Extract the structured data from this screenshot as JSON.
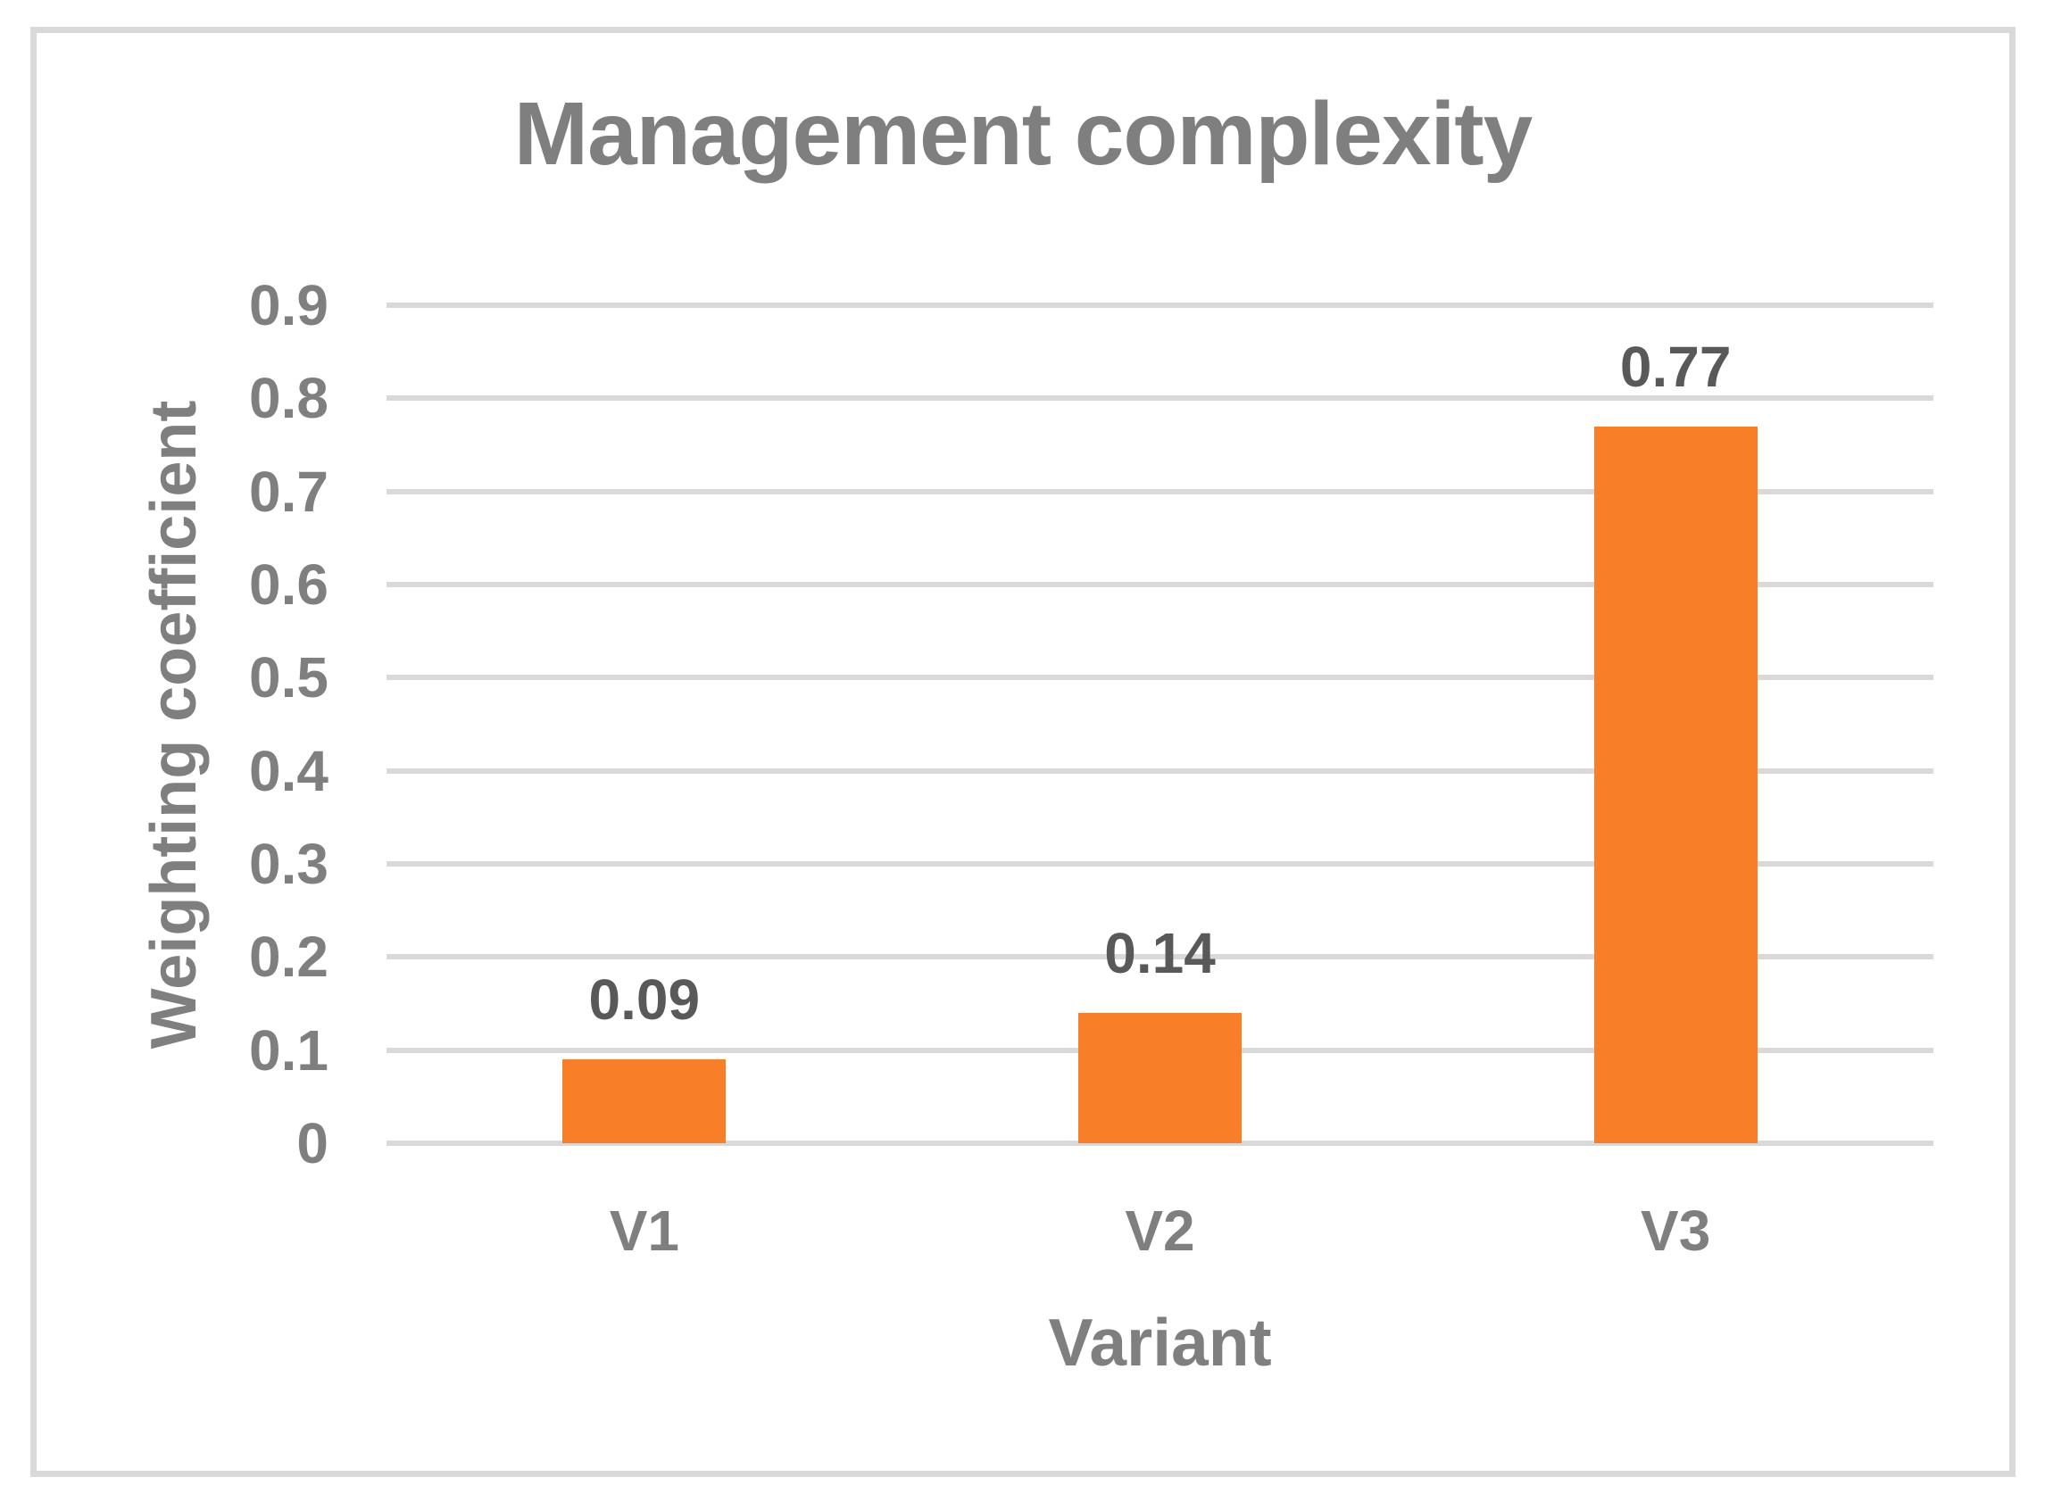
{
  "chart_data": {
    "type": "bar",
    "title": "Management complexity",
    "xlabel": "Variant",
    "ylabel": "Weighting coefficient",
    "categories": [
      "V1",
      "V2",
      "V3"
    ],
    "values": [
      0.09,
      0.14,
      0.77
    ],
    "data_labels": [
      "0.09",
      "0.14",
      "0.77"
    ],
    "ylim": [
      0,
      0.9
    ],
    "ytick_step": 0.1,
    "ytick_labels": [
      "0",
      "0.1",
      "0.2",
      "0.3",
      "0.4",
      "0.5",
      "0.6",
      "0.7",
      "0.8",
      "0.9"
    ],
    "grid": true,
    "legend_position": "none",
    "colors": {
      "bar": "#F97E28",
      "gridline": "#D9D9D9",
      "frame_border": "#D9D9D9",
      "background": "#FFFFFF",
      "title_text": "#7F7F7F",
      "axis_text": "#7F7F7F",
      "data_label_text": "#595959"
    }
  }
}
